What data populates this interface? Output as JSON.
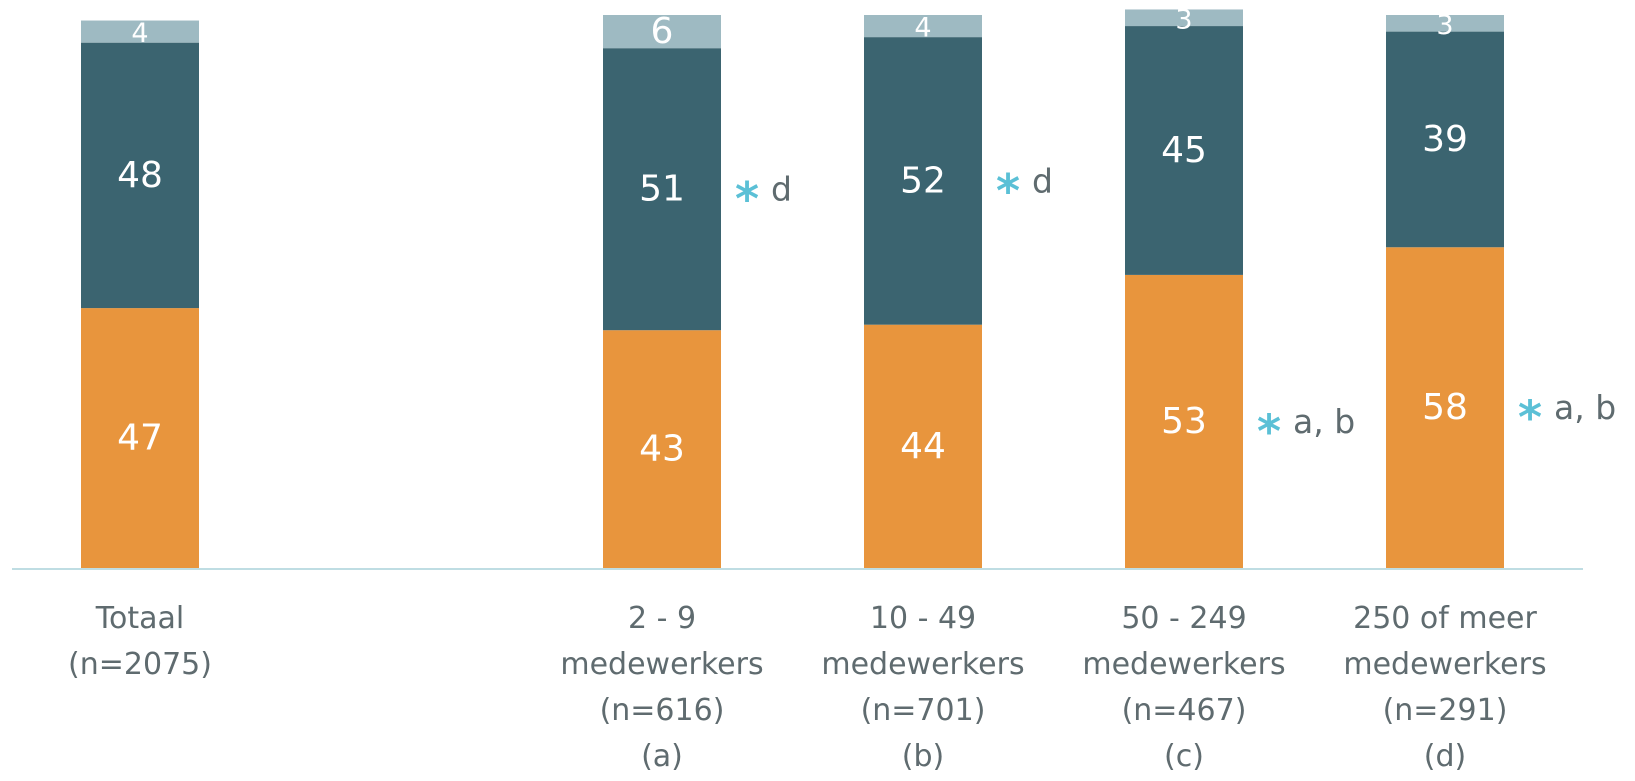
{
  "chart_data": {
    "type": "bar",
    "stacked": true,
    "percent": true,
    "ylim": [
      0,
      100
    ],
    "grid": false,
    "legend": "none",
    "categories": [
      {
        "lines": [
          "Totaal",
          "(n=2075)"
        ]
      },
      {
        "lines": [
          "2 - 9",
          "medewerkers",
          "(n=616)",
          "(a)"
        ]
      },
      {
        "lines": [
          "10 - 49",
          "medewerkers",
          "(n=701)",
          "(b)"
        ]
      },
      {
        "lines": [
          "50 - 249",
          "medewerkers",
          "(n=467)",
          "(c)"
        ]
      },
      {
        "lines": [
          "250 of meer",
          "medewerkers",
          "(n=291)",
          "(d)"
        ]
      }
    ],
    "series": [
      {
        "values": [
          47,
          43,
          44,
          53,
          58
        ],
        "color": "#e8953d"
      },
      {
        "values": [
          48,
          51,
          52,
          45,
          39
        ],
        "color": "#3b6470"
      },
      {
        "values": [
          4,
          6,
          4,
          3,
          3
        ],
        "color": "#9ebac2"
      }
    ],
    "annotations": [
      {
        "category": 1,
        "series": 1,
        "symbol": "*",
        "text": "d"
      },
      {
        "category": 2,
        "series": 1,
        "symbol": "*",
        "text": "d"
      },
      {
        "category": 3,
        "series": 0,
        "symbol": "*",
        "text": "a, b"
      },
      {
        "category": 4,
        "series": 0,
        "symbol": "*",
        "text": "a, b"
      }
    ],
    "colors": {
      "axis": "#bfdde3",
      "star": "#5bc0d6",
      "label_text": "#5f6b6f"
    }
  }
}
